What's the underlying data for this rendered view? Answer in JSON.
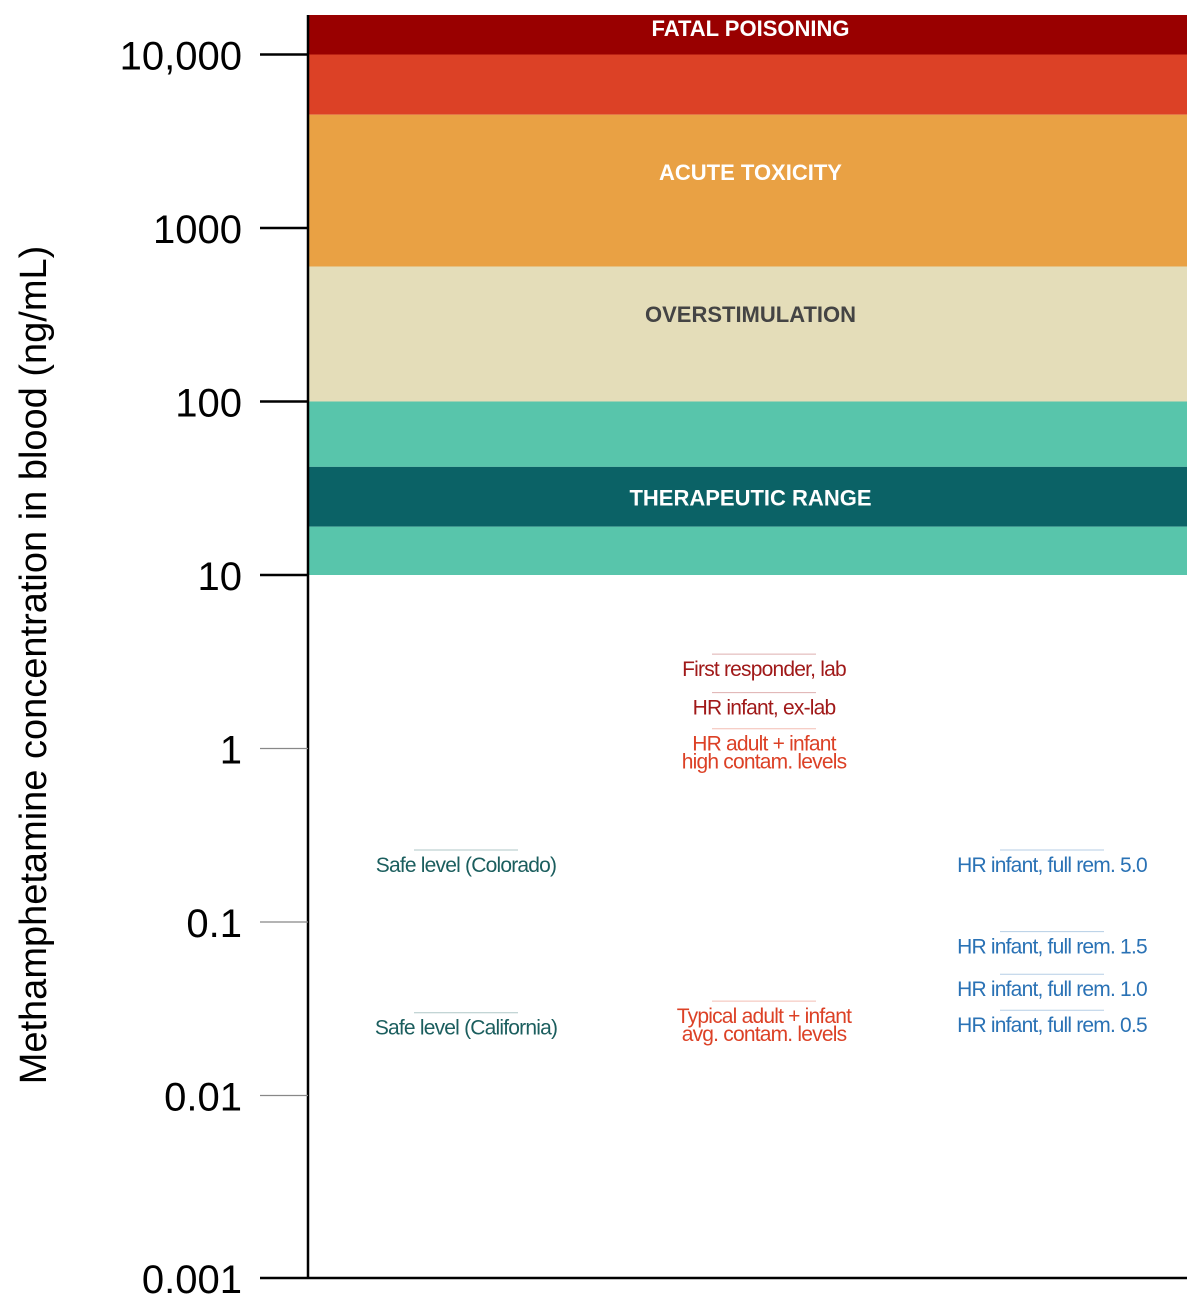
{
  "chart_data": {
    "type": "range-annotation",
    "title": "",
    "ylabel": "Methamphetamine concentration in blood (ng/mL)",
    "xlabel": "",
    "yscale": "log",
    "ylim": [
      0.001,
      20000
    ],
    "yticks": [
      {
        "value": 10000,
        "label": "10,000",
        "major": true
      },
      {
        "value": 1000,
        "label": "1000",
        "major": true
      },
      {
        "value": 100,
        "label": "100",
        "major": true
      },
      {
        "value": 10,
        "label": "10",
        "major": true
      },
      {
        "value": 1,
        "label": "1",
        "major": false
      },
      {
        "value": 0.1,
        "label": "0.1",
        "major": false
      },
      {
        "value": 0.01,
        "label": "0.01",
        "major": false
      },
      {
        "value": 0.001,
        "label": "0.001",
        "major": true
      }
    ],
    "bands": [
      {
        "name": "fatal-poisoning",
        "from": 10000,
        "to": 20000,
        "color": "#990000",
        "label": "FATAL POISONING",
        "label_color": "#ffffff",
        "label_at": 14200
      },
      {
        "name": "fatal-lower",
        "from": 4500,
        "to": 10000,
        "color": "#dc4126",
        "label": "",
        "label_color": "#ffffff"
      },
      {
        "name": "acute-toxicity",
        "from": 600,
        "to": 4500,
        "color": "#e9a144",
        "label": "ACUTE TOXICITY",
        "label_color": "#ffffff",
        "label_at": 2100
      },
      {
        "name": "overstimulation",
        "from": 100,
        "to": 600,
        "color": "#e4ddb9",
        "label": "OVERSTIMULATION",
        "label_color": "#444444",
        "label_at": 320
      },
      {
        "name": "therapeutic-upper",
        "from": 42,
        "to": 100,
        "color": "#58c5ab",
        "label": "",
        "label_color": "#ffffff"
      },
      {
        "name": "therapeutic-core",
        "from": 19,
        "to": 42,
        "color": "#0b6266",
        "label": "THERAPEUTIC RANGE",
        "label_color": "#ffffff",
        "label_at": 28
      },
      {
        "name": "therapeutic-lower",
        "from": 10,
        "to": 19,
        "color": "#58c5ab",
        "label": "",
        "label_color": "#ffffff"
      }
    ],
    "annotations": [
      {
        "name": "first-responder-lab",
        "lines": [
          "First responder, lab"
        ],
        "value": 3.5,
        "column": "center",
        "color": "#a01919"
      },
      {
        "name": "hr-infant-ex-lab",
        "lines": [
          "HR infant, ex-lab"
        ],
        "value": 2.1,
        "column": "center",
        "color": "#a01919"
      },
      {
        "name": "hr-adult-infant-high",
        "lines": [
          "HR adult + infant",
          "high contam. levels"
        ],
        "value": 1.3,
        "column": "center",
        "color": "#dc4126"
      },
      {
        "name": "safe-level-colorado",
        "lines": [
          "Safe level (Colorado)"
        ],
        "value": 0.26,
        "column": "left",
        "color": "#1b5e5e"
      },
      {
        "name": "safe-level-california",
        "lines": [
          "Safe level (California)"
        ],
        "value": 0.03,
        "column": "left",
        "color": "#1b5e5e"
      },
      {
        "name": "typical-adult-infant-avg",
        "lines": [
          "Typical adult + infant",
          "avg. contam. levels"
        ],
        "value": 0.035,
        "column": "center",
        "color": "#dc4126"
      },
      {
        "name": "hr-infant-full-rem-5-0",
        "lines": [
          "HR infant, full rem. 5.0"
        ],
        "value": 0.26,
        "column": "right",
        "color": "#2a72b5"
      },
      {
        "name": "hr-infant-full-rem-1-5",
        "lines": [
          "HR infant, full rem. 1.5"
        ],
        "value": 0.088,
        "column": "right",
        "color": "#2a72b5"
      },
      {
        "name": "hr-infant-full-rem-1-0",
        "lines": [
          "HR infant, full rem. 1.0"
        ],
        "value": 0.05,
        "column": "right",
        "color": "#2a72b5"
      },
      {
        "name": "hr-infant-full-rem-0-5",
        "lines": [
          "HR infant, full rem. 0.5"
        ],
        "value": 0.031,
        "column": "right",
        "color": "#2a72b5"
      }
    ]
  }
}
